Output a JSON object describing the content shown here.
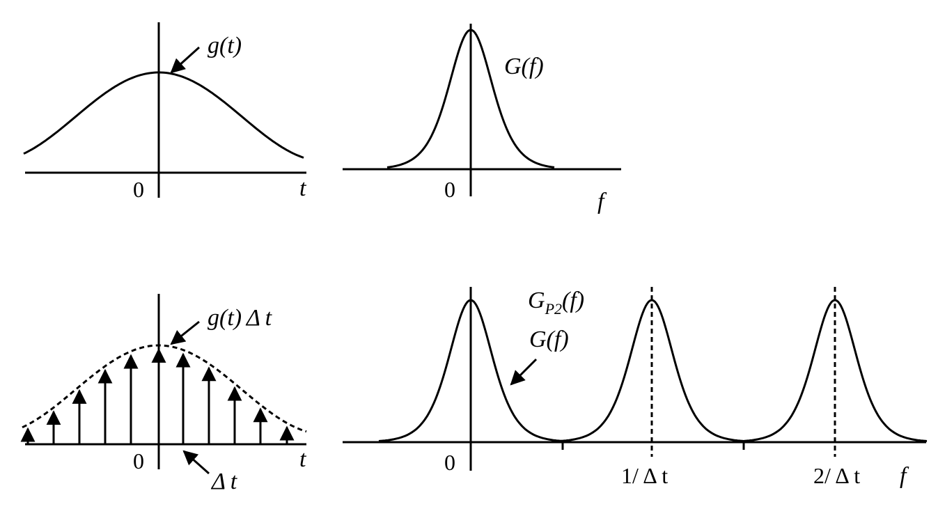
{
  "panels": {
    "time_signal": {
      "curve_label": "g(t)",
      "origin_label": "0",
      "axis_label": "t"
    },
    "spectrum": {
      "curve_label": "G(f)",
      "origin_label": "0",
      "axis_label": "f"
    },
    "sampled_signal": {
      "curve_label": "g(t) Δ t",
      "origin_label": "0",
      "axis_label": "t",
      "spacing_label": "Δ t"
    },
    "periodic_spectrum": {
      "curve_label_main": "G",
      "curve_label_sub": "P2",
      "curve_label_tail": "(f)",
      "base_label": "G(f)",
      "origin_label": "0",
      "tick1_label": "1/ Δ t",
      "tick2_label": "2/ Δ t",
      "axis_label": "f"
    }
  },
  "colors": {
    "ink": "#000000",
    "background": "#ffffff"
  }
}
